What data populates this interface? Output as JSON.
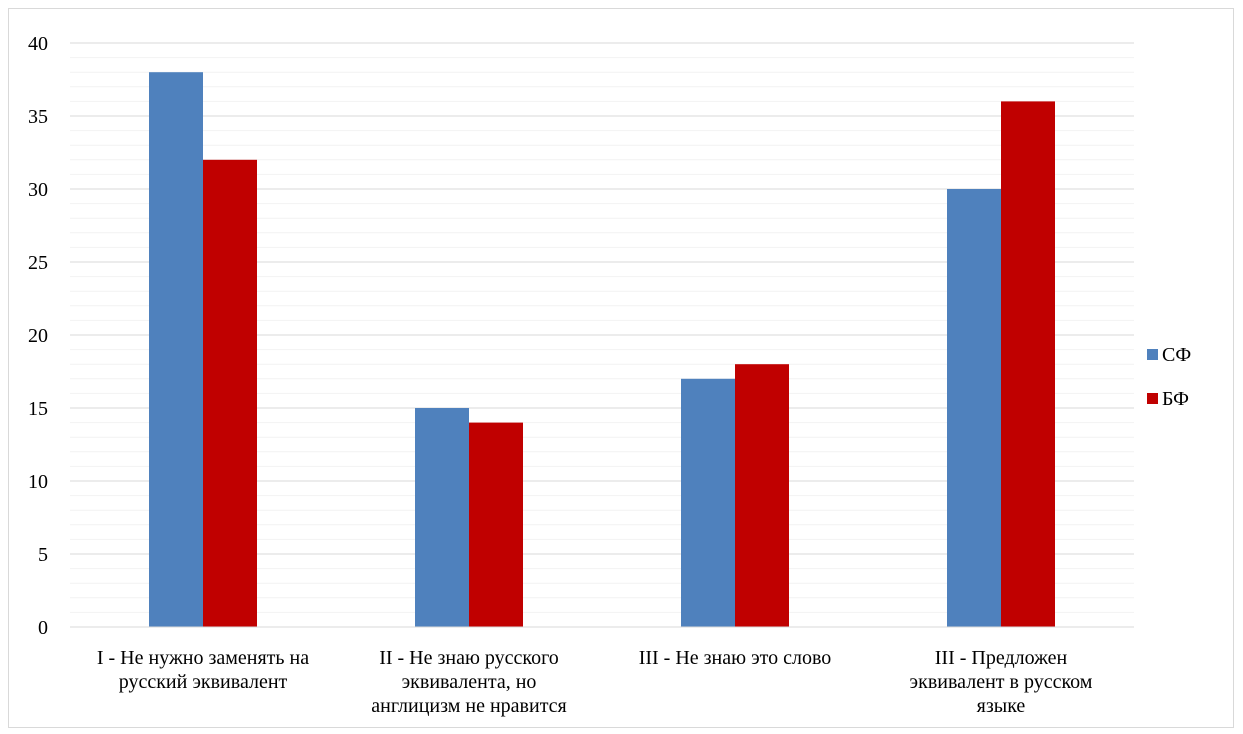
{
  "chart_data": {
    "type": "bar",
    "categories": [
      [
        "I - Не нужно заменять на",
        "русский эквивалент"
      ],
      [
        "II - Не знаю русского",
        "эквивалента, но",
        "англицизм не нравится"
      ],
      [
        "III - Не знаю это слово"
      ],
      [
        "III - Предложен",
        "эквивалент в русском",
        "языке"
      ]
    ],
    "series": [
      {
        "name": "СФ",
        "values": [
          38,
          15,
          17,
          30
        ],
        "color": "#4f81bd"
      },
      {
        "name": "БФ",
        "values": [
          32,
          14,
          18,
          36
        ],
        "color": "#c00000"
      }
    ],
    "ylim": [
      0,
      40
    ],
    "yticks": [
      "0",
      "5",
      "10",
      "15",
      "20",
      "25",
      "30",
      "35",
      "40"
    ],
    "grid": true,
    "legend_position": "right"
  }
}
